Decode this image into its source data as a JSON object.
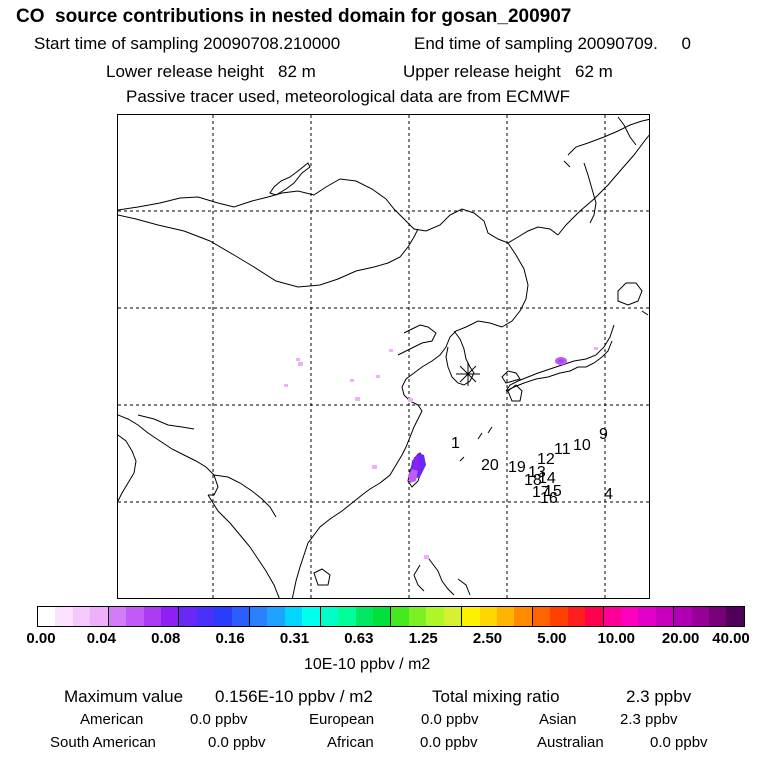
{
  "header": {
    "title": "CO  source contributions in nested domain for gosan_200907",
    "start": "Start time of sampling 20090708.210000",
    "end": "End time of sampling 20090709.     0",
    "lower": "Lower release height   82 m",
    "upper": "Upper release height   62 m",
    "note": "Passive tracer used, meteorological data are from ECMWF"
  },
  "map": {
    "receptor_marker": "asterisk",
    "trajectory_labels": [
      "1",
      "20",
      "19",
      "18",
      "17",
      "16",
      "15",
      "14",
      "13",
      "12",
      "11",
      "10",
      "9",
      "4"
    ]
  },
  "colorbar": {
    "colors": [
      "#ffffff",
      "#fbe3ff",
      "#f5c9fd",
      "#efaffb",
      "#d47cf7",
      "#c05cf5",
      "#ab3cf3",
      "#8f20f5",
      "#6a28f7",
      "#4a30f9",
      "#2c3cfb",
      "#2b5efd",
      "#2b80ff",
      "#1ea4ff",
      "#00d7ff",
      "#00ffef",
      "#00ffc8",
      "#00ff96",
      "#00e864",
      "#00e13c",
      "#44e81e",
      "#7df023",
      "#aef52a",
      "#d7f032",
      "#fdf000",
      "#ffd700",
      "#ffb400",
      "#ff8c00",
      "#ff6400",
      "#ff4100",
      "#ff1e1e",
      "#ff0050",
      "#ff0096",
      "#ff00be",
      "#e100c8",
      "#c800be",
      "#b000b4",
      "#960096",
      "#780078",
      "#50005a"
    ],
    "ticks": [
      "0.00",
      "0.04",
      "0.08",
      "0.16",
      "0.31",
      "0.63",
      "1.25",
      "2.50",
      "5.00",
      "10.00",
      "20.00",
      "40.00"
    ],
    "unit": "10E-10 ppbv / m2"
  },
  "summary": {
    "max_label": "Maximum value",
    "max_value": "0.156E-10 ppbv / m2",
    "total_label": "Total mixing ratio",
    "total_value": "2.3 ppbv",
    "regions": [
      {
        "name": "American",
        "value": "0.0 ppbv"
      },
      {
        "name": "European",
        "value": "0.0 ppbv"
      },
      {
        "name": "Asian",
        "value": "2.3 ppbv"
      },
      {
        "name": "South American",
        "value": "0.0 ppbv"
      },
      {
        "name": "African",
        "value": "0.0 ppbv"
      },
      {
        "name": "Australian",
        "value": "0.0 ppbv"
      }
    ]
  }
}
